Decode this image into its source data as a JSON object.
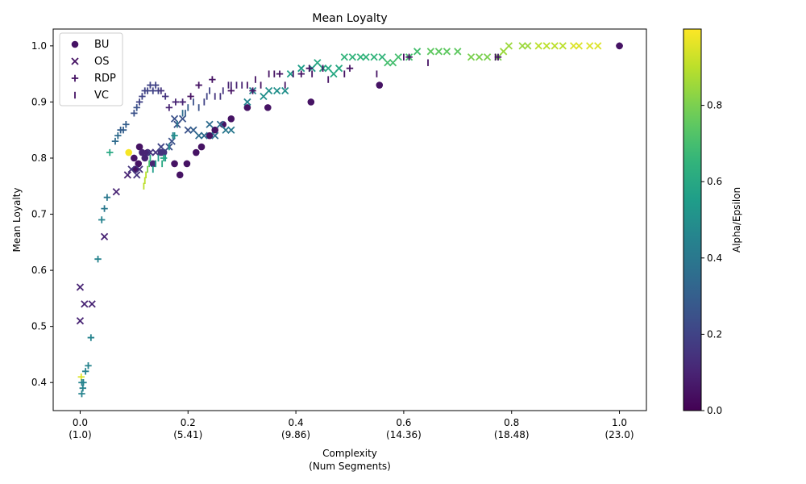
{
  "chart_data": {
    "type": "scatter",
    "title": "Mean Loyalty",
    "xlabel_line1": "Complexity",
    "xlabel_line2": "(Num Segments)",
    "ylabel": "Mean Loyalty",
    "xlim": [
      -0.05,
      1.05
    ],
    "ylim": [
      0.35,
      1.03
    ],
    "x_ticks": [
      {
        "value": 0.0,
        "label": "0.0",
        "sub": "(1.0)"
      },
      {
        "value": 0.2,
        "label": "0.2",
        "sub": "(5.41)"
      },
      {
        "value": 0.4,
        "label": "0.4",
        "sub": "(9.86)"
      },
      {
        "value": 0.6,
        "label": "0.6",
        "sub": "(14.36)"
      },
      {
        "value": 0.8,
        "label": "0.8",
        "sub": "(18.48)"
      },
      {
        "value": 1.0,
        "label": "1.0",
        "sub": "(23.0)"
      }
    ],
    "y_ticks": [
      "0.4",
      "0.5",
      "0.6",
      "0.7",
      "0.8",
      "0.9",
      "1.0"
    ],
    "grid": false,
    "legend_position": "top-left",
    "colorbar": {
      "label": "Alpha/Epsilon",
      "colormap": "viridis",
      "range": [
        0.0,
        1.0
      ],
      "ticks": [
        "0.0",
        "0.2",
        "0.4",
        "0.6",
        "0.8"
      ]
    },
    "series": [
      {
        "name": "BU",
        "marker": "circle",
        "points": [
          [
            0.09,
            0.81,
            0.99
          ],
          [
            0.1,
            0.8,
            0.05
          ],
          [
            0.103,
            0.78,
            0.05
          ],
          [
            0.108,
            0.79,
            0.05
          ],
          [
            0.11,
            0.82,
            0.05
          ],
          [
            0.115,
            0.81,
            0.1
          ],
          [
            0.12,
            0.8,
            0.1
          ],
          [
            0.125,
            0.81,
            0.1
          ],
          [
            0.135,
            0.79,
            0.1
          ],
          [
            0.15,
            0.81,
            0.15
          ],
          [
            0.155,
            0.81,
            0.15
          ],
          [
            0.175,
            0.79,
            0.05
          ],
          [
            0.185,
            0.77,
            0.05
          ],
          [
            0.198,
            0.79,
            0.05
          ],
          [
            0.215,
            0.81,
            0.05
          ],
          [
            0.225,
            0.82,
            0.05
          ],
          [
            0.24,
            0.84,
            0.05
          ],
          [
            0.25,
            0.85,
            0.05
          ],
          [
            0.265,
            0.86,
            0.05
          ],
          [
            0.28,
            0.87,
            0.05
          ],
          [
            0.31,
            0.89,
            0.05
          ],
          [
            0.348,
            0.89,
            0.05
          ],
          [
            0.428,
            0.9,
            0.05
          ],
          [
            0.555,
            0.93,
            0.05
          ],
          [
            1.0,
            1.0,
            0.05
          ]
        ]
      },
      {
        "name": "OS",
        "marker": "x",
        "points": [
          [
            0.0,
            0.57,
            0.1
          ],
          [
            0.0,
            0.51,
            0.1
          ],
          [
            0.008,
            0.54,
            0.1
          ],
          [
            0.022,
            0.54,
            0.1
          ],
          [
            0.045,
            0.66,
            0.1
          ],
          [
            0.067,
            0.74,
            0.1
          ],
          [
            0.088,
            0.77,
            0.1
          ],
          [
            0.095,
            0.78,
            0.15
          ],
          [
            0.105,
            0.77,
            0.15
          ],
          [
            0.11,
            0.78,
            0.15
          ],
          [
            0.13,
            0.81,
            0.15
          ],
          [
            0.14,
            0.81,
            0.15
          ],
          [
            0.15,
            0.82,
            0.2
          ],
          [
            0.165,
            0.82,
            0.25
          ],
          [
            0.17,
            0.83,
            0.25
          ],
          [
            0.175,
            0.87,
            0.25
          ],
          [
            0.18,
            0.86,
            0.25
          ],
          [
            0.19,
            0.87,
            0.25
          ],
          [
            0.2,
            0.85,
            0.25
          ],
          [
            0.21,
            0.85,
            0.3
          ],
          [
            0.22,
            0.84,
            0.35
          ],
          [
            0.23,
            0.84,
            0.35
          ],
          [
            0.24,
            0.86,
            0.35
          ],
          [
            0.25,
            0.84,
            0.35
          ],
          [
            0.26,
            0.86,
            0.35
          ],
          [
            0.27,
            0.85,
            0.4
          ],
          [
            0.28,
            0.85,
            0.4
          ],
          [
            0.31,
            0.9,
            0.45
          ],
          [
            0.32,
            0.92,
            0.45
          ],
          [
            0.34,
            0.91,
            0.5
          ],
          [
            0.35,
            0.92,
            0.5
          ],
          [
            0.365,
            0.92,
            0.5
          ],
          [
            0.38,
            0.92,
            0.5
          ],
          [
            0.39,
            0.95,
            0.55
          ],
          [
            0.41,
            0.96,
            0.55
          ],
          [
            0.43,
            0.96,
            0.55
          ],
          [
            0.44,
            0.97,
            0.6
          ],
          [
            0.45,
            0.96,
            0.6
          ],
          [
            0.46,
            0.96,
            0.6
          ],
          [
            0.47,
            0.95,
            0.6
          ],
          [
            0.48,
            0.96,
            0.6
          ],
          [
            0.49,
            0.98,
            0.65
          ],
          [
            0.505,
            0.98,
            0.65
          ],
          [
            0.52,
            0.98,
            0.65
          ],
          [
            0.53,
            0.98,
            0.65
          ],
          [
            0.545,
            0.98,
            0.65
          ],
          [
            0.56,
            0.98,
            0.65
          ],
          [
            0.57,
            0.97,
            0.7
          ],
          [
            0.58,
            0.97,
            0.7
          ],
          [
            0.59,
            0.98,
            0.7
          ],
          [
            0.61,
            0.98,
            0.7
          ],
          [
            0.625,
            0.99,
            0.7
          ],
          [
            0.65,
            0.99,
            0.75
          ],
          [
            0.665,
            0.99,
            0.75
          ],
          [
            0.68,
            0.99,
            0.75
          ],
          [
            0.7,
            0.99,
            0.75
          ],
          [
            0.725,
            0.98,
            0.8
          ],
          [
            0.74,
            0.98,
            0.8
          ],
          [
            0.755,
            0.98,
            0.8
          ],
          [
            0.775,
            0.98,
            0.8
          ],
          [
            0.785,
            0.99,
            0.85
          ],
          [
            0.795,
            1.0,
            0.85
          ],
          [
            0.82,
            1.0,
            0.85
          ],
          [
            0.83,
            1.0,
            0.85
          ],
          [
            0.85,
            1.0,
            0.9
          ],
          [
            0.865,
            1.0,
            0.9
          ],
          [
            0.88,
            1.0,
            0.9
          ],
          [
            0.895,
            1.0,
            0.9
          ],
          [
            0.915,
            1.0,
            0.95
          ],
          [
            0.925,
            1.0,
            0.95
          ],
          [
            0.945,
            1.0,
            0.95
          ],
          [
            0.96,
            1.0,
            0.95
          ]
        ]
      },
      {
        "name": "RDP",
        "marker": "plus",
        "points": [
          [
            0.002,
            0.41,
            0.95
          ],
          [
            0.003,
            0.38,
            0.45
          ],
          [
            0.003,
            0.4,
            0.45
          ],
          [
            0.005,
            0.39,
            0.45
          ],
          [
            0.006,
            0.4,
            0.45
          ],
          [
            0.01,
            0.42,
            0.45
          ],
          [
            0.015,
            0.43,
            0.45
          ],
          [
            0.02,
            0.48,
            0.45
          ],
          [
            0.033,
            0.62,
            0.45
          ],
          [
            0.04,
            0.69,
            0.45
          ],
          [
            0.045,
            0.71,
            0.4
          ],
          [
            0.05,
            0.73,
            0.4
          ],
          [
            0.065,
            0.83,
            0.35
          ],
          [
            0.07,
            0.84,
            0.35
          ],
          [
            0.075,
            0.85,
            0.3
          ],
          [
            0.08,
            0.85,
            0.3
          ],
          [
            0.085,
            0.86,
            0.3
          ],
          [
            0.1,
            0.88,
            0.25
          ],
          [
            0.105,
            0.89,
            0.25
          ],
          [
            0.11,
            0.9,
            0.2
          ],
          [
            0.115,
            0.91,
            0.2
          ],
          [
            0.12,
            0.92,
            0.2
          ],
          [
            0.125,
            0.92,
            0.2
          ],
          [
            0.13,
            0.93,
            0.2
          ],
          [
            0.135,
            0.92,
            0.2
          ],
          [
            0.14,
            0.93,
            0.2
          ],
          [
            0.145,
            0.92,
            0.2
          ],
          [
            0.15,
            0.92,
            0.15
          ],
          [
            0.158,
            0.91,
            0.15
          ],
          [
            0.165,
            0.89,
            0.1
          ],
          [
            0.177,
            0.9,
            0.1
          ],
          [
            0.19,
            0.9,
            0.1
          ],
          [
            0.205,
            0.91,
            0.05
          ],
          [
            0.22,
            0.93,
            0.05
          ],
          [
            0.245,
            0.94,
            0.05
          ],
          [
            0.28,
            0.92,
            0.05
          ],
          [
            0.32,
            0.92,
            0.05
          ],
          [
            0.37,
            0.95,
            0.05
          ],
          [
            0.41,
            0.95,
            0.05
          ],
          [
            0.425,
            0.96,
            0.05
          ],
          [
            0.5,
            0.96,
            0.05
          ],
          [
            0.61,
            0.98,
            0.05
          ],
          [
            0.775,
            0.98,
            0.05
          ],
          [
            1.0,
            1.0,
            0.05
          ],
          [
            0.055,
            0.81,
            0.6
          ],
          [
            0.155,
            0.8,
            0.6
          ],
          [
            0.175,
            0.84,
            0.5
          ]
        ]
      },
      {
        "name": "VC",
        "marker": "vline",
        "points": [
          [
            0.118,
            0.75,
            0.9
          ],
          [
            0.12,
            0.76,
            0.9
          ],
          [
            0.122,
            0.77,
            0.9
          ],
          [
            0.125,
            0.78,
            0.8
          ],
          [
            0.128,
            0.79,
            0.7
          ],
          [
            0.13,
            0.8,
            0.6
          ],
          [
            0.135,
            0.78,
            0.55
          ],
          [
            0.14,
            0.79,
            0.55
          ],
          [
            0.145,
            0.8,
            0.55
          ],
          [
            0.152,
            0.79,
            0.6
          ],
          [
            0.158,
            0.8,
            0.55
          ],
          [
            0.165,
            0.82,
            0.5
          ],
          [
            0.172,
            0.84,
            0.45
          ],
          [
            0.18,
            0.86,
            0.4
          ],
          [
            0.19,
            0.88,
            0.35
          ],
          [
            0.195,
            0.88,
            0.3
          ],
          [
            0.2,
            0.89,
            0.3
          ],
          [
            0.21,
            0.9,
            0.25
          ],
          [
            0.22,
            0.89,
            0.25
          ],
          [
            0.23,
            0.9,
            0.2
          ],
          [
            0.235,
            0.91,
            0.2
          ],
          [
            0.24,
            0.92,
            0.2
          ],
          [
            0.25,
            0.91,
            0.15
          ],
          [
            0.26,
            0.91,
            0.15
          ],
          [
            0.265,
            0.92,
            0.15
          ],
          [
            0.275,
            0.93,
            0.1
          ],
          [
            0.28,
            0.93,
            0.1
          ],
          [
            0.29,
            0.93,
            0.1
          ],
          [
            0.3,
            0.93,
            0.1
          ],
          [
            0.31,
            0.93,
            0.05
          ],
          [
            0.325,
            0.94,
            0.05
          ],
          [
            0.335,
            0.93,
            0.05
          ],
          [
            0.35,
            0.95,
            0.05
          ],
          [
            0.36,
            0.95,
            0.05
          ],
          [
            0.38,
            0.93,
            0.05
          ],
          [
            0.395,
            0.95,
            0.05
          ],
          [
            0.43,
            0.95,
            0.05
          ],
          [
            0.45,
            0.96,
            0.05
          ],
          [
            0.46,
            0.94,
            0.05
          ],
          [
            0.49,
            0.95,
            0.05
          ],
          [
            0.55,
            0.95,
            0.05
          ],
          [
            0.6,
            0.98,
            0.05
          ],
          [
            0.645,
            0.97,
            0.05
          ],
          [
            0.77,
            0.98,
            0.05
          ]
        ]
      }
    ]
  }
}
